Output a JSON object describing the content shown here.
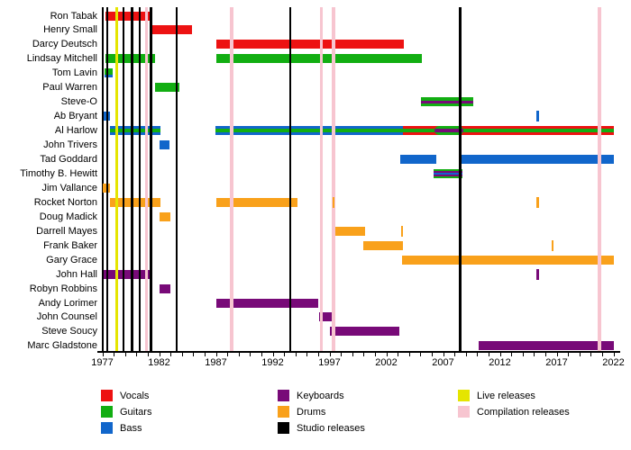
{
  "chart_data": {
    "type": "bar",
    "subtype": "band-membership-timeline",
    "title": "",
    "xlabel": "",
    "ylabel": "",
    "x_axis": {
      "min": 1977,
      "max": 2022,
      "minor_tick_interval": 1,
      "labeled_ticks": [
        "1977",
        "1982",
        "1987",
        "1992",
        "1997",
        "2002",
        "2007",
        "2012",
        "2017",
        "2022"
      ]
    },
    "colors": {
      "vocals": "#ed1212",
      "guitars": "#12ae12",
      "bass": "#1166cb",
      "keyboards": "#780a78",
      "drums": "#f9a11b",
      "studio": "#000000",
      "live": "#e5e500",
      "compilation": "#f7c5d0"
    },
    "members": [
      {
        "name": "Ron Tabak",
        "segments": [
          {
            "start": 1977.3,
            "end": 1981.2,
            "stripes": [
              "vocals"
            ]
          }
        ],
        "ticks": []
      },
      {
        "name": "Henry Small",
        "segments": [
          {
            "start": 1981.2,
            "end": 1984.9,
            "stripes": [
              "vocals"
            ]
          }
        ],
        "ticks": []
      },
      {
        "name": "Darcy Deutsch",
        "segments": [
          {
            "start": 1987.0,
            "end": 2003.55,
            "stripes": [
              "vocals"
            ]
          }
        ],
        "ticks": []
      },
      {
        "name": "Lindsay Mitchell",
        "segments": [
          {
            "start": 1977.3,
            "end": 1981.65,
            "stripes": [
              "guitars"
            ]
          },
          {
            "start": 1987.0,
            "end": 2005.1,
            "stripes": [
              "guitars"
            ]
          }
        ],
        "ticks": []
      },
      {
        "name": "Tom Lavin",
        "segments": [
          {
            "start": 1977.2,
            "end": 1977.9,
            "stripes": [
              "guitars",
              "guitars",
              "bass"
            ]
          }
        ],
        "ticks": []
      },
      {
        "name": "Paul Warren",
        "segments": [
          {
            "start": 1981.65,
            "end": 1983.8,
            "stripes": [
              "guitars"
            ]
          }
        ],
        "ticks": []
      },
      {
        "name": "Steve-O",
        "segments": [
          {
            "start": 2005.05,
            "end": 2009.65,
            "stripes": [
              "guitars",
              "keyboards",
              "guitars"
            ]
          }
        ],
        "ticks": []
      },
      {
        "name": "Ab Bryant",
        "segments": [
          {
            "start": 1977.1,
            "end": 1977.7,
            "stripes": [
              "bass"
            ]
          }
        ],
        "ticks": [
          {
            "year": 2015.35,
            "role": "bass"
          }
        ]
      },
      {
        "name": "Al Harlow",
        "segments": [
          {
            "start": 1977.7,
            "end": 1982.1,
            "stripes": [
              "bass",
              "guitars",
              "bass"
            ]
          },
          {
            "start": 1986.95,
            "end": 2003.5,
            "stripes": [
              "bass",
              "guitars",
              "bass"
            ]
          },
          {
            "start": 2003.5,
            "end": 2022.05,
            "stripes": [
              "vocals",
              "guitars",
              "vocals"
            ]
          }
        ],
        "overlays": [
          {
            "start": 2006.25,
            "end": 2008.8,
            "stripes": [
              "guitars",
              "keyboards",
              "guitars"
            ]
          }
        ],
        "ticks": []
      },
      {
        "name": "John Trivers",
        "segments": [
          {
            "start": 1982.05,
            "end": 1982.9,
            "stripes": [
              "bass"
            ]
          }
        ],
        "ticks": []
      },
      {
        "name": "Tad Goddard",
        "segments": [
          {
            "start": 2003.25,
            "end": 2006.4,
            "stripes": [
              "bass"
            ]
          },
          {
            "start": 2008.6,
            "end": 2022.05,
            "stripes": [
              "bass"
            ]
          }
        ],
        "ticks": []
      },
      {
        "name": "Timothy B. Hewitt",
        "segments": [
          {
            "start": 2006.15,
            "end": 2008.7,
            "stripes": [
              "guitars",
              "keyboards",
              "bass",
              "keyboards",
              "guitars"
            ]
          }
        ],
        "ticks": []
      },
      {
        "name": "Jim Vallance",
        "segments": [
          {
            "start": 1977.05,
            "end": 1977.7,
            "stripes": [
              "drums"
            ]
          }
        ],
        "ticks": []
      },
      {
        "name": "Rocket Norton",
        "segments": [
          {
            "start": 1977.7,
            "end": 1982.1,
            "stripes": [
              "drums"
            ]
          },
          {
            "start": 1987.0,
            "end": 1994.2,
            "stripes": [
              "drums"
            ]
          }
        ],
        "ticks": [
          {
            "year": 1997.35,
            "role": "drums"
          },
          {
            "year": 2015.35,
            "role": "drums"
          }
        ]
      },
      {
        "name": "Doug Madick",
        "segments": [
          {
            "start": 1982.05,
            "end": 1983.0,
            "stripes": [
              "drums"
            ]
          }
        ],
        "ticks": []
      },
      {
        "name": "Darrell Mayes",
        "segments": [
          {
            "start": 1997.45,
            "end": 2000.15,
            "stripes": [
              "drums"
            ]
          }
        ],
        "ticks": [
          {
            "year": 2003.4,
            "role": "drums"
          }
        ]
      },
      {
        "name": "Frank Baker",
        "segments": [
          {
            "start": 2000.0,
            "end": 2003.5,
            "stripes": [
              "drums"
            ]
          }
        ],
        "ticks": [
          {
            "year": 2016.65,
            "role": "drums"
          }
        ]
      },
      {
        "name": "Gary Grace",
        "segments": [
          {
            "start": 2003.4,
            "end": 2022.05,
            "stripes": [
              "drums"
            ]
          }
        ],
        "ticks": []
      },
      {
        "name": "John Hall",
        "segments": [
          {
            "start": 1977.1,
            "end": 1981.25,
            "stripes": [
              "keyboards"
            ]
          }
        ],
        "ticks": [
          {
            "year": 2015.35,
            "role": "keyboards"
          }
        ]
      },
      {
        "name": "Robyn Robbins",
        "segments": [
          {
            "start": 1982.05,
            "end": 1983.0,
            "stripes": [
              "keyboards"
            ]
          }
        ],
        "ticks": []
      },
      {
        "name": "Andy Lorimer",
        "segments": [
          {
            "start": 1987.0,
            "end": 1996.0,
            "stripes": [
              "keyboards"
            ]
          }
        ],
        "ticks": []
      },
      {
        "name": "John Counsel",
        "segments": [
          {
            "start": 1996.1,
            "end": 1997.2,
            "stripes": [
              "keyboards"
            ]
          }
        ],
        "ticks": []
      },
      {
        "name": "Steve Soucy",
        "segments": [
          {
            "start": 1997.05,
            "end": 2003.15,
            "stripes": [
              "keyboards"
            ]
          }
        ],
        "ticks": []
      },
      {
        "name": "Marc Gladstone",
        "segments": [
          {
            "start": 2010.15,
            "end": 2022.05,
            "stripes": [
              "keyboards"
            ]
          }
        ],
        "ticks": []
      }
    ],
    "releases": {
      "studio": [
        1977.45,
        1978.85,
        1979.6,
        1980.3,
        1981.3,
        1983.55,
        1993.55,
        2008.5
      ],
      "live": [
        1978.3
      ],
      "compilation": [
        1980.9,
        1988.4,
        1996.3,
        1997.35,
        2020.75
      ]
    },
    "legend": {
      "columns": [
        {
          "items": [
            {
              "label": "Vocals",
              "color": "vocals"
            },
            {
              "label": "Guitars",
              "color": "guitars"
            },
            {
              "label": "Bass",
              "color": "bass"
            }
          ]
        },
        {
          "items": [
            {
              "label": "Keyboards",
              "color": "keyboards"
            },
            {
              "label": "Drums",
              "color": "drums"
            },
            {
              "label": "Studio releases",
              "color": "studio"
            }
          ]
        },
        {
          "items": [
            {
              "label": "Live releases",
              "color": "live"
            },
            {
              "label": "Compilation releases",
              "color": "compilation"
            }
          ]
        }
      ]
    }
  }
}
